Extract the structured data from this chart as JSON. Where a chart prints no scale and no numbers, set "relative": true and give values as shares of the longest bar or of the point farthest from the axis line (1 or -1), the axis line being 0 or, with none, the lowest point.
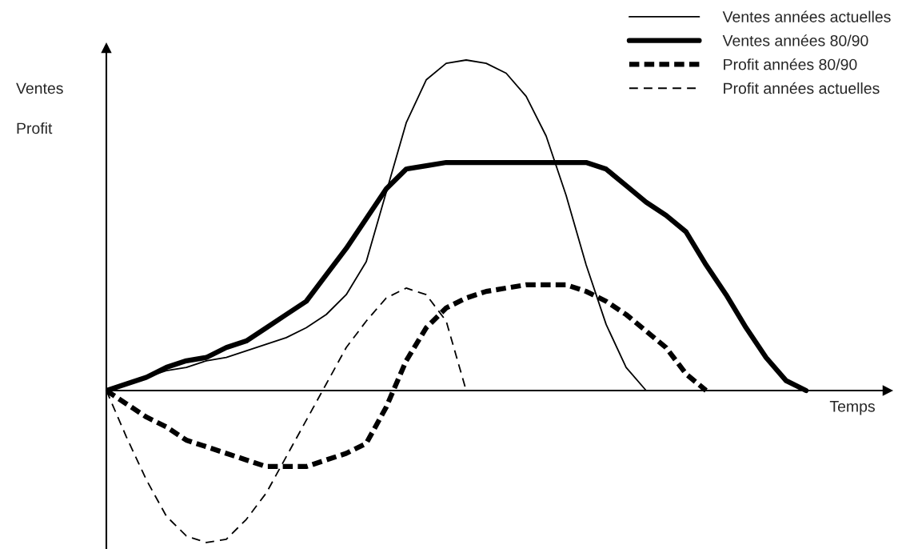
{
  "chart_data": {
    "type": "line",
    "relative": true,
    "xlabel": "Temps",
    "annotations": [
      "Ventes",
      "Profit"
    ],
    "legend": "top right",
    "categories": [
      null,
      null,
      null,
      null,
      null,
      null,
      null,
      null,
      null,
      null,
      null,
      null,
      null,
      null,
      null,
      null,
      null,
      null,
      null,
      null,
      null,
      null,
      null,
      null,
      null,
      null,
      null,
      null,
      null,
      null,
      null,
      null,
      null,
      null,
      null,
      null
    ],
    "series": [
      {
        "name": "Ventes années actuelles",
        "color": "#000000",
        "line_style": "solid",
        "values": [
          0,
          0.02,
          0.04,
          0.06,
          0.07,
          0.09,
          0.1,
          0.12,
          0.14,
          0.16,
          0.19,
          0.23,
          0.29,
          0.39,
          0.6,
          0.81,
          0.94,
          0.99,
          1,
          0.99,
          0.96,
          0.89,
          0.77,
          0.59,
          0.38,
          0.2,
          0.07,
          0,
          null,
          null,
          null,
          null,
          null,
          null,
          null,
          null
        ]
      },
      {
        "name": "Ventes années 80/90",
        "color": "#000000",
        "line_style": "solid",
        "values": [
          0,
          0.02,
          0.04,
          0.07,
          0.09,
          0.1,
          0.13,
          0.15,
          0.19,
          0.23,
          0.27,
          0.35,
          0.43,
          0.52,
          0.61,
          0.67,
          0.68,
          0.69,
          0.69,
          0.69,
          0.69,
          0.69,
          0.69,
          0.69,
          0.69,
          0.67,
          0.62,
          0.57,
          0.53,
          0.48,
          0.38,
          0.29,
          0.19,
          0.1,
          0.03,
          0
        ]
      },
      {
        "name": "Profit années 80/90",
        "color": "#000000",
        "line_style": "dashed",
        "values": [
          0,
          -0.04,
          -0.08,
          -0.11,
          -0.15,
          -0.17,
          -0.19,
          -0.21,
          -0.23,
          -0.23,
          -0.23,
          -0.21,
          -0.19,
          -0.16,
          -0.05,
          0.09,
          0.19,
          0.25,
          0.28,
          0.3,
          0.31,
          0.32,
          0.32,
          0.32,
          0.3,
          0.27,
          0.23,
          0.18,
          0.13,
          0.05,
          0,
          null,
          null,
          null,
          null,
          null
        ]
      },
      {
        "name": "Profit années actuelles",
        "color": "#000000",
        "line_style": "dashed",
        "values": [
          0,
          -0.14,
          -0.27,
          -0.38,
          -0.44,
          -0.46,
          -0.45,
          -0.39,
          -0.31,
          -0.2,
          -0.09,
          0.02,
          0.13,
          0.21,
          0.28,
          0.31,
          0.29,
          0.21,
          0,
          null,
          null,
          null,
          null,
          null,
          null,
          null,
          null,
          null,
          null,
          null,
          null,
          null,
          null,
          null,
          null,
          null
        ]
      }
    ]
  }
}
